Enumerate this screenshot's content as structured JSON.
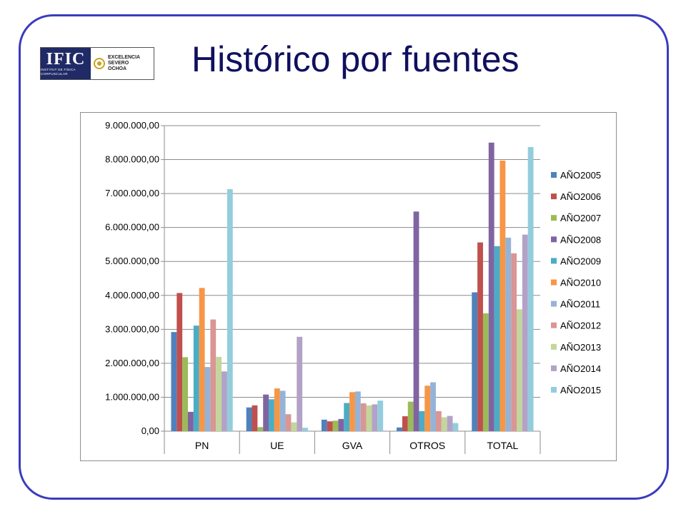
{
  "slide": {
    "title": "Histórico por fuentes",
    "logo": {
      "mark_text": "IFIC",
      "mark_subtext": "Institut de Física Corpuscular",
      "seal_icon": "key-seal-icon",
      "excellence_lines": [
        "EXCELENCIA",
        "SEVERO",
        "OCHOA"
      ]
    },
    "frame_color": "#3b3bbf",
    "title_color": "#101060"
  },
  "chart_data": {
    "type": "bar",
    "categories": [
      "PN",
      "UE",
      "GVA",
      "OTROS",
      "TOTAL"
    ],
    "ylim": [
      0,
      9000000
    ],
    "yticks": [
      "0,00",
      "1.000.000,00",
      "2.000.000,00",
      "3.000.000,00",
      "4.000.000,00",
      "5.000.000,00",
      "6.000.000,00",
      "7.000.000,00",
      "8.000.000,00",
      "9.000.000,00"
    ],
    "ytick_values": [
      0,
      1000000,
      2000000,
      3000000,
      4000000,
      5000000,
      6000000,
      7000000,
      8000000,
      9000000
    ],
    "grid": true,
    "legend_position": "right",
    "series": [
      {
        "name": "AÑO2005",
        "color": "#4f81bd",
        "values": [
          2920000,
          700000,
          340000,
          110000,
          4090000
        ]
      },
      {
        "name": "AÑO2006",
        "color": "#c0504d",
        "values": [
          4070000,
          760000,
          290000,
          440000,
          5560000
        ]
      },
      {
        "name": "AÑO2007",
        "color": "#9bbb59",
        "values": [
          2180000,
          120000,
          310000,
          870000,
          3470000
        ]
      },
      {
        "name": "AÑO2008",
        "color": "#8064a2",
        "values": [
          570000,
          1080000,
          360000,
          6470000,
          8500000
        ]
      },
      {
        "name": "AÑO2009",
        "color": "#4bacc6",
        "values": [
          3110000,
          940000,
          830000,
          590000,
          5450000
        ]
      },
      {
        "name": "AÑO2010",
        "color": "#f79646",
        "values": [
          4220000,
          1260000,
          1150000,
          1340000,
          7970000
        ]
      },
      {
        "name": "AÑO2011",
        "color": "#95b3d7",
        "values": [
          1890000,
          1190000,
          1170000,
          1440000,
          5700000
        ]
      },
      {
        "name": "AÑO2012",
        "color": "#d99694",
        "values": [
          3290000,
          500000,
          820000,
          590000,
          5240000
        ]
      },
      {
        "name": "AÑO2013",
        "color": "#c3d69b",
        "values": [
          2190000,
          260000,
          760000,
          410000,
          3590000
        ]
      },
      {
        "name": "AÑO2014",
        "color": "#b3a2c7",
        "values": [
          1760000,
          2780000,
          790000,
          450000,
          5790000
        ]
      },
      {
        "name": "AÑO2015",
        "color": "#93cddd",
        "values": [
          7130000,
          100000,
          900000,
          240000,
          8370000
        ]
      }
    ]
  }
}
